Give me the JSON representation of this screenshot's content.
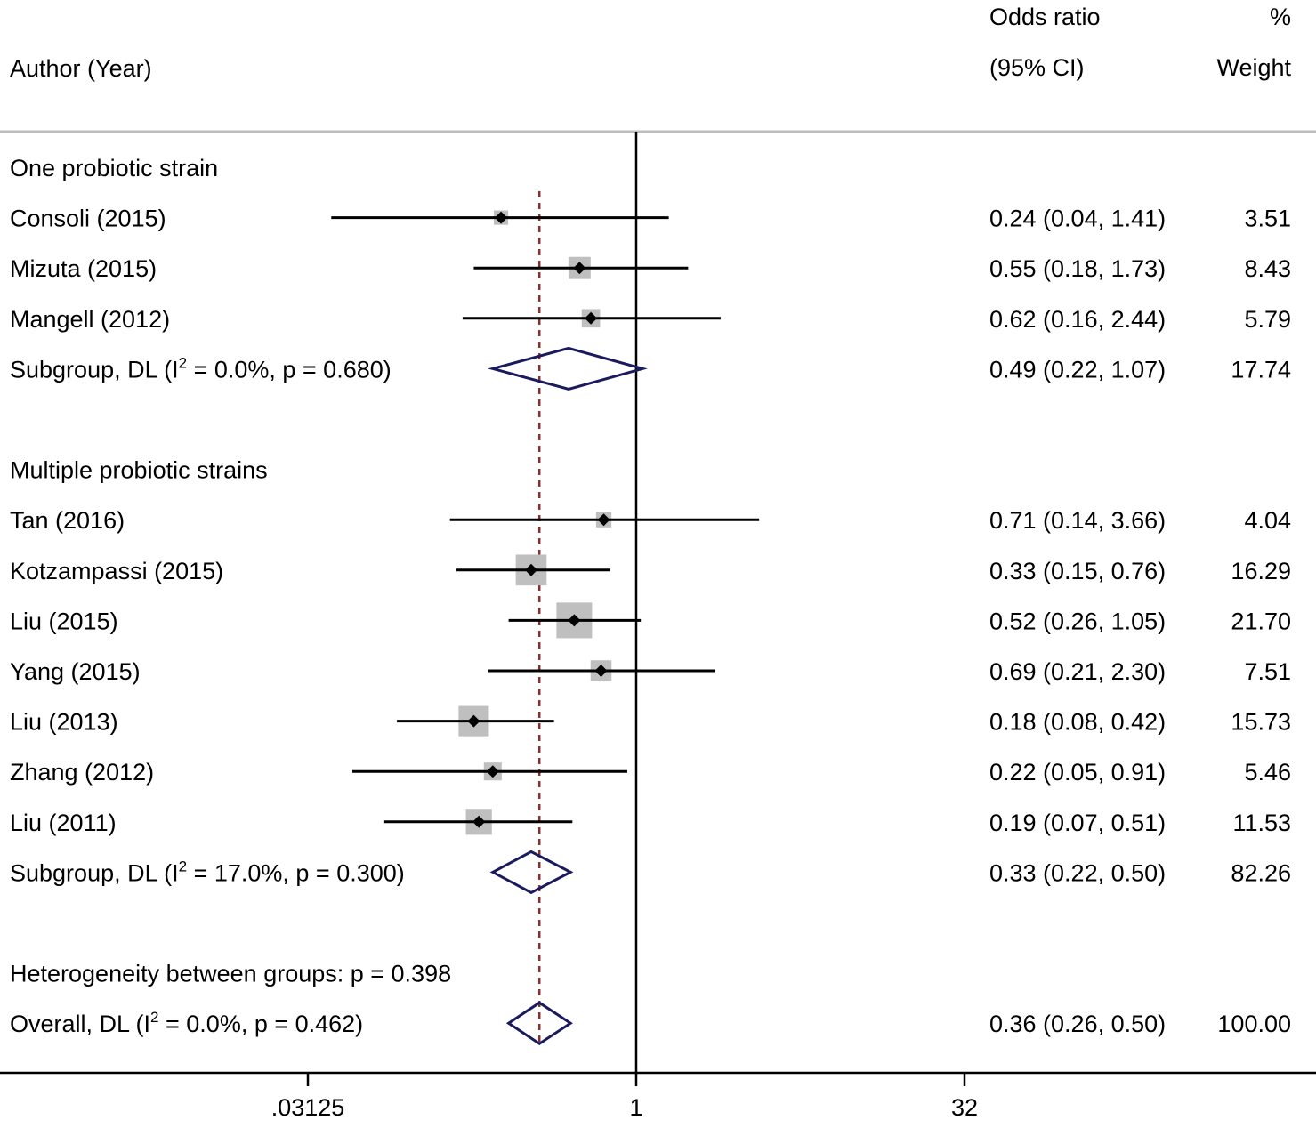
{
  "chart_data": {
    "type": "forest",
    "x_scale": "log",
    "xlim": [
      0.03125,
      32
    ],
    "null_value": 1,
    "overall_line_value": 0.36,
    "x_ticks": [
      {
        "value": 0.03125,
        "label": ".03125"
      },
      {
        "value": 1,
        "label": "1"
      },
      {
        "value": 32,
        "label": "32"
      }
    ],
    "header": {
      "study_label": "Author (Year)",
      "es_label_line1": "Odds ratio",
      "es_label_line2": "(95% CI)",
      "weight_label_line1": "%",
      "weight_label_line2": "Weight"
    },
    "rows": [
      {
        "kind": "group",
        "label": "One probiotic strain"
      },
      {
        "kind": "study",
        "label": "Consoli (2015)",
        "or": 0.24,
        "lo": 0.04,
        "hi": 1.41,
        "es_text": "0.24 (0.04, 1.41)",
        "weight_text": "3.51",
        "weight": 3.51
      },
      {
        "kind": "study",
        "label": "Mizuta (2015)",
        "or": 0.55,
        "lo": 0.18,
        "hi": 1.73,
        "es_text": "0.55 (0.18, 1.73)",
        "weight_text": "8.43",
        "weight": 8.43
      },
      {
        "kind": "study",
        "label": "Mangell (2012)",
        "or": 0.62,
        "lo": 0.16,
        "hi": 2.44,
        "es_text": "0.62 (0.16, 2.44)",
        "weight_text": "5.79",
        "weight": 5.79
      },
      {
        "kind": "subgroup",
        "label_pre": "Subgroup, DL (I",
        "label_sup": "2",
        "label_post": " = 0.0%, p = 0.680)",
        "or": 0.49,
        "lo": 0.22,
        "hi": 1.07,
        "es_text": "0.49 (0.22, 1.07)",
        "weight_text": "17.74"
      },
      {
        "kind": "blank"
      },
      {
        "kind": "group",
        "label": "Multiple probiotic strains"
      },
      {
        "kind": "study",
        "label": "Tan (2016)",
        "or": 0.71,
        "lo": 0.14,
        "hi": 3.66,
        "es_text": "0.71 (0.14, 3.66)",
        "weight_text": "4.04",
        "weight": 4.04
      },
      {
        "kind": "study",
        "label": "Kotzampassi (2015)",
        "or": 0.33,
        "lo": 0.15,
        "hi": 0.76,
        "es_text": "0.33 (0.15, 0.76)",
        "weight_text": "16.29",
        "weight": 16.29
      },
      {
        "kind": "study",
        "label": "Liu (2015)",
        "or": 0.52,
        "lo": 0.26,
        "hi": 1.05,
        "es_text": "0.52 (0.26, 1.05)",
        "weight_text": "21.70",
        "weight": 21.7
      },
      {
        "kind": "study",
        "label": "Yang (2015)",
        "or": 0.69,
        "lo": 0.21,
        "hi": 2.3,
        "es_text": "0.69 (0.21, 2.30)",
        "weight_text": "7.51",
        "weight": 7.51
      },
      {
        "kind": "study",
        "label": "Liu (2013)",
        "or": 0.18,
        "lo": 0.08,
        "hi": 0.42,
        "es_text": "0.18 (0.08, 0.42)",
        "weight_text": "15.73",
        "weight": 15.73
      },
      {
        "kind": "study",
        "label": "Zhang (2012)",
        "or": 0.22,
        "lo": 0.05,
        "hi": 0.91,
        "es_text": "0.22 (0.05, 0.91)",
        "weight_text": "5.46",
        "weight": 5.46
      },
      {
        "kind": "study",
        "label": "Liu (2011)",
        "or": 0.19,
        "lo": 0.07,
        "hi": 0.51,
        "es_text": "0.19 (0.07, 0.51)",
        "weight_text": "11.53",
        "weight": 11.53
      },
      {
        "kind": "subgroup",
        "label_pre": "Subgroup, DL (I",
        "label_sup": "2",
        "label_post": " = 17.0%, p = 0.300)",
        "or": 0.33,
        "lo": 0.22,
        "hi": 0.5,
        "es_text": "0.33 (0.22, 0.50)",
        "weight_text": "82.26"
      },
      {
        "kind": "blank"
      },
      {
        "kind": "note",
        "label": "Heterogeneity between groups: p = 0.398"
      },
      {
        "kind": "overall",
        "label_pre": "Overall, DL (I",
        "label_sup": "2",
        "label_post": " = 0.0%, p = 0.462)",
        "or": 0.36,
        "lo": 0.26,
        "hi": 0.5,
        "es_text": "0.36 (0.26, 0.50)",
        "weight_text": "100.00"
      }
    ],
    "colors": {
      "diamond": "#1a1a5e",
      "overall_line": "#8b2e2e",
      "weight_box": "#bfbfbf",
      "header_rule": "#bdbdbd"
    }
  }
}
